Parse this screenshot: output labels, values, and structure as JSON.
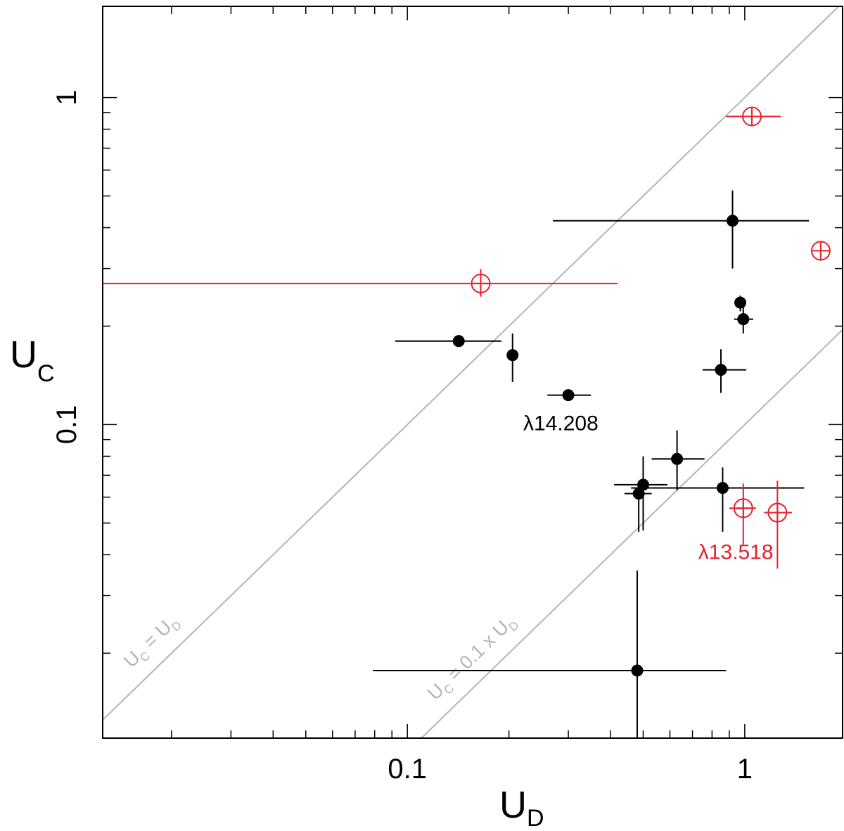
{
  "chart_data": {
    "type": "scatter",
    "title": "",
    "xlabel": {
      "main": "U",
      "sub": "D"
    },
    "ylabel": {
      "main": "U",
      "sub": "C"
    },
    "xscale": "log",
    "yscale": "log",
    "xlim": [
      0.0125,
      1.95
    ],
    "ylim": [
      0.011,
      1.9
    ],
    "xticks": [
      {
        "value": 0.1,
        "label": "0.1"
      },
      {
        "value": 1,
        "label": "1"
      }
    ],
    "yticks": [
      {
        "value": 0.1,
        "label": "0.1"
      },
      {
        "value": 1,
        "label": "1"
      }
    ],
    "grid": false,
    "colors": {
      "black_series": "#000000",
      "red_series": "#e8202a",
      "reference": "#b5b5b5"
    },
    "series": [
      {
        "marker": "filled-circle",
        "color": "#000000",
        "points": [
          {
            "x": 0.92,
            "y": 0.42,
            "xerr": [
              0.27,
              1.55
            ],
            "yerr": [
              0.3,
              0.52
            ]
          },
          {
            "x": 0.97,
            "y": 0.236,
            "xerr": [
              0.95,
              0.99
            ],
            "yerr": [
              0.222,
              0.248
            ]
          },
          {
            "x": 0.99,
            "y": 0.21,
            "xerr": [
              0.93,
              1.06
            ],
            "yerr": [
              0.19,
              0.235
            ]
          },
          {
            "x": 0.142,
            "y": 0.18,
            "xerr": [
              0.092,
              0.19
            ],
            "yerr": [
              0.173,
              0.188
            ]
          },
          {
            "x": 0.205,
            "y": 0.163,
            "xerr": [
              0.2,
              0.21
            ],
            "yerr": [
              0.135,
              0.19
            ]
          },
          {
            "x": 0.85,
            "y": 0.147,
            "xerr": [
              0.75,
              1.01
            ],
            "yerr": [
              0.125,
              0.17
            ]
          },
          {
            "x": 0.3,
            "y": 0.123,
            "xerr": [
              0.26,
              0.35
            ],
            "yerr": [
              0.119,
              0.127
            ]
          },
          {
            "x": 0.63,
            "y": 0.0785,
            "xerr": [
              0.53,
              0.76
            ],
            "yerr": [
              0.063,
              0.096
            ]
          },
          {
            "x": 0.5,
            "y": 0.0655,
            "xerr": [
              0.41,
              0.59
            ],
            "yerr": [
              0.0475,
              0.08
            ]
          },
          {
            "x": 0.485,
            "y": 0.0615,
            "xerr": [
              0.44,
              0.53
            ],
            "yerr": [
              0.047,
              0.067
            ]
          },
          {
            "x": 0.86,
            "y": 0.064,
            "xerr": [
              0.46,
              1.5
            ],
            "yerr": [
              0.047,
              0.074
            ]
          },
          {
            "x": 0.48,
            "y": 0.0177,
            "xerr": [
              0.079,
              0.88
            ],
            "yerr": [
              0.011,
              0.0358
            ]
          }
        ]
      },
      {
        "marker": "open-crossed-circle",
        "color": "#e8202a",
        "points": [
          {
            "x": 1.05,
            "y": 0.875,
            "xerr": [
              0.88,
              1.28
            ],
            "yerr": [
              0.875,
              0.875
            ]
          },
          {
            "x": 1.68,
            "y": 0.34,
            "xerr": [
              1.68,
              1.68
            ],
            "yerr": [
              0.34,
              0.34
            ]
          },
          {
            "x": 0.165,
            "y": 0.27,
            "xerr": [
              0.0125,
              0.42
            ],
            "yerr": [
              0.246,
              0.299
            ]
          },
          {
            "x": 0.99,
            "y": 0.0555,
            "xerr": [
              0.9,
              1.08
            ],
            "yerr": [
              0.043,
              0.066
            ]
          },
          {
            "x": 1.25,
            "y": 0.0538,
            "xerr": [
              1.14,
              1.38
            ],
            "yerr": [
              0.0363,
              0.0674
            ]
          }
        ]
      }
    ],
    "reference_lines": [
      {
        "slope": 1,
        "label_main": "U",
        "label_sub_left": "C",
        "label_mid": " = U",
        "label_sub_right": "D"
      },
      {
        "slope": 0.1,
        "label_main": "U",
        "label_sub_left": "C",
        "label_mid": " = 0.1 x U",
        "label_sub_right": "D"
      }
    ],
    "annotations": [
      {
        "text": "λ14.208",
        "color": "#000000",
        "x": 0.3,
        "y": 0.123
      },
      {
        "text": "λ13.518",
        "color": "#e8202a",
        "x": 0.99,
        "y": 0.0555
      }
    ]
  }
}
